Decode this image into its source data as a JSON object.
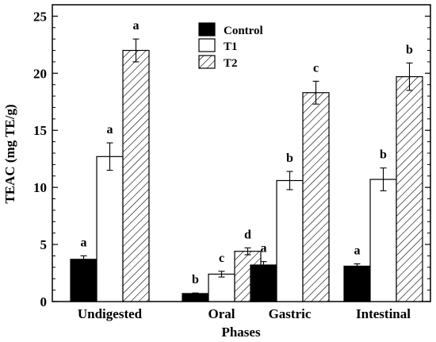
{
  "chart_data": {
    "type": "bar",
    "title": "",
    "xlabel": "Phases",
    "ylabel": "TEAC (mg TE/g)",
    "ylim": [
      0,
      26
    ],
    "yticks": [
      0,
      5,
      10,
      15,
      20,
      25
    ],
    "categories": [
      "Undigested",
      "Oral",
      "Gastric",
      "Intestinal"
    ],
    "legend_position": "top-center",
    "grid": false,
    "series": [
      {
        "name": "Control",
        "fill": "solid-black",
        "values": [
          3.7,
          0.7,
          3.2,
          3.1
        ],
        "errors": [
          0.3,
          0.05,
          0.3,
          0.2
        ],
        "labels": [
          "a",
          "b",
          "a",
          "a"
        ]
      },
      {
        "name": "T1",
        "fill": "white",
        "values": [
          12.7,
          2.4,
          10.6,
          10.7
        ],
        "errors": [
          1.2,
          0.25,
          0.8,
          1.0
        ],
        "labels": [
          "a",
          "c",
          "b",
          "b"
        ]
      },
      {
        "name": "T2",
        "fill": "diagonal-hatch",
        "values": [
          22.0,
          4.4,
          18.3,
          19.7
        ],
        "errors": [
          1.0,
          0.3,
          1.0,
          1.2
        ],
        "labels": [
          "a",
          "d",
          "c",
          "b"
        ]
      }
    ]
  }
}
